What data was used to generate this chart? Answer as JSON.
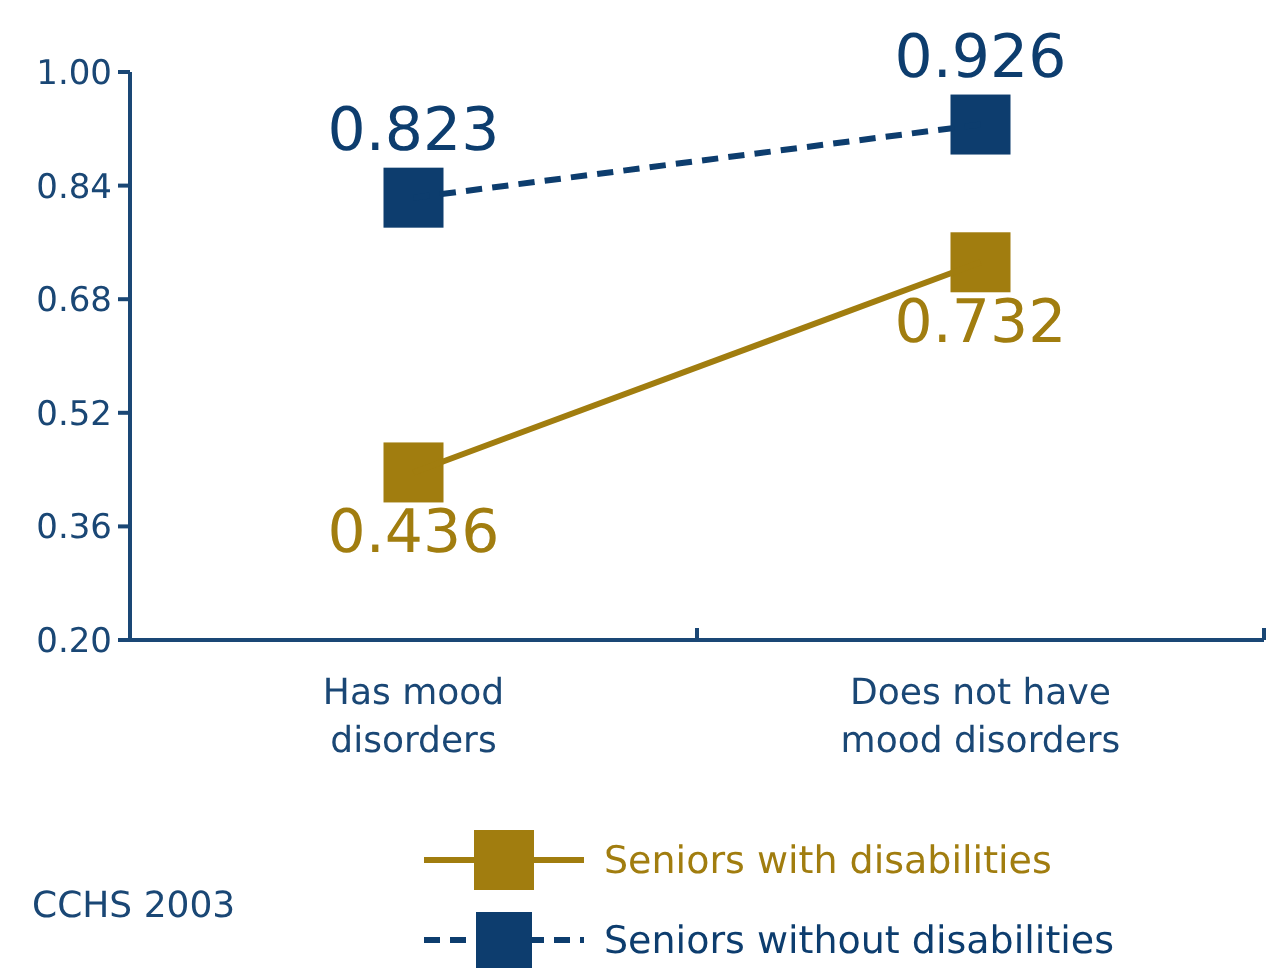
{
  "chart_data": {
    "type": "line",
    "categories": [
      "Has mood disorders",
      "Does not have mood disorders"
    ],
    "series": [
      {
        "name": "Seniors with disabilities",
        "color": "#a17d0f",
        "values": [
          0.436,
          0.732
        ],
        "line_style": "solid",
        "marker": "square"
      },
      {
        "name": "Seniors without disabilities",
        "color": "#0d3d6e",
        "values": [
          0.823,
          0.926
        ],
        "line_style": "dashed",
        "marker": "square"
      }
    ],
    "ylim": [
      0.2,
      1.0
    ],
    "yticks": [
      {
        "value": 0.2,
        "label": "0.20"
      },
      {
        "value": 0.36,
        "label": "0.36"
      },
      {
        "value": 0.52,
        "label": "0.52"
      },
      {
        "value": 0.68,
        "label": "0.68"
      },
      {
        "value": 0.84,
        "label": "0.84"
      },
      {
        "value": 1.0,
        "label": "1.00"
      }
    ],
    "data_labels": true,
    "grid": false,
    "legend": "bottom",
    "annotations": [
      "CCHS 2003"
    ]
  }
}
